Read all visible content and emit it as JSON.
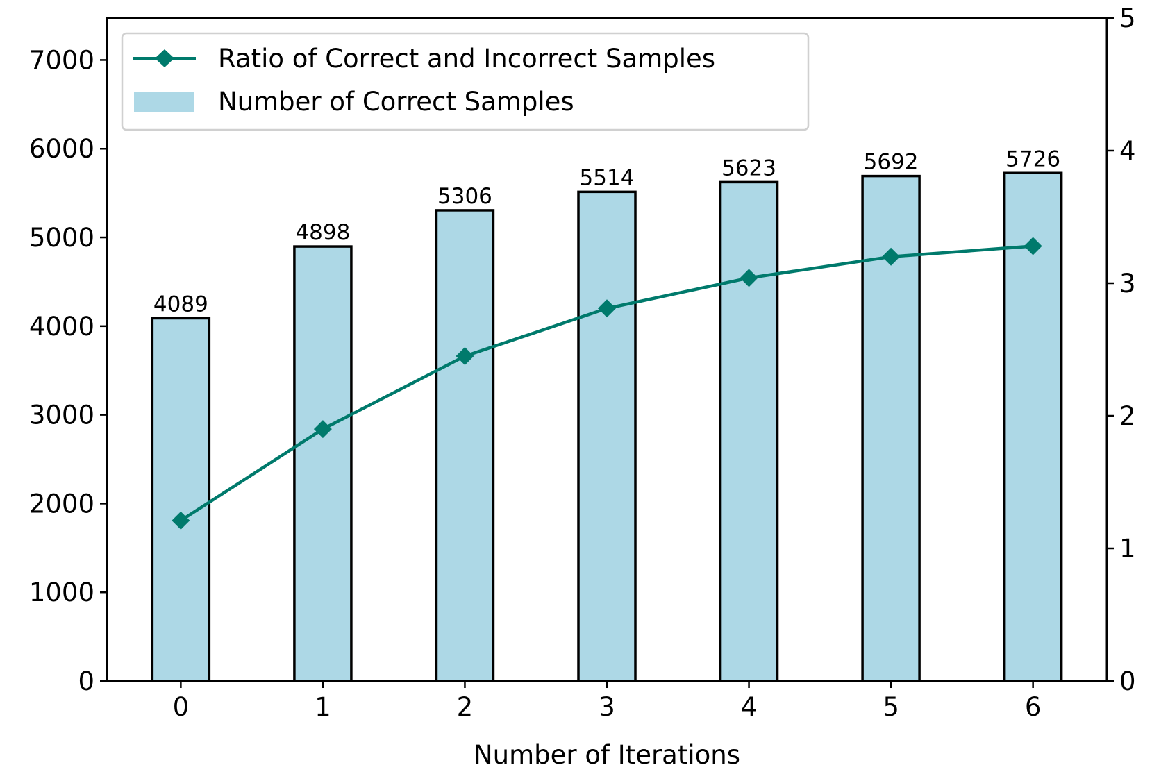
{
  "chart_data": {
    "type": "bar+line",
    "title": "",
    "xlabel": "Number of Iterations",
    "ylabel": "",
    "ylabel_right": "",
    "categories": [
      "0",
      "1",
      "2",
      "3",
      "4",
      "5",
      "6"
    ],
    "ylim": [
      0,
      7473
    ],
    "ylim_right": [
      0,
      5
    ],
    "yticks": [
      0,
      1000,
      2000,
      3000,
      4000,
      5000,
      6000,
      7000
    ],
    "yticks_right": [
      0,
      1,
      2,
      3,
      4,
      5
    ],
    "grid": false,
    "legend_position": "top-left",
    "series": [
      {
        "name": "Ratio of Correct and Incorrect Samples",
        "type": "line",
        "axis": "right",
        "marker": "diamond",
        "color": "#007a6c",
        "values": [
          1.21,
          1.9,
          2.45,
          2.81,
          3.04,
          3.2,
          3.28
        ]
      },
      {
        "name": "Number of Correct Samples",
        "type": "bar",
        "axis": "left",
        "color": "#add8e6",
        "edgecolor": "#000000",
        "values": [
          4089,
          4898,
          5306,
          5514,
          5623,
          5692,
          5726
        ],
        "data_labels": [
          "4089",
          "4898",
          "5306",
          "5514",
          "5623",
          "5692",
          "5726"
        ]
      }
    ]
  }
}
